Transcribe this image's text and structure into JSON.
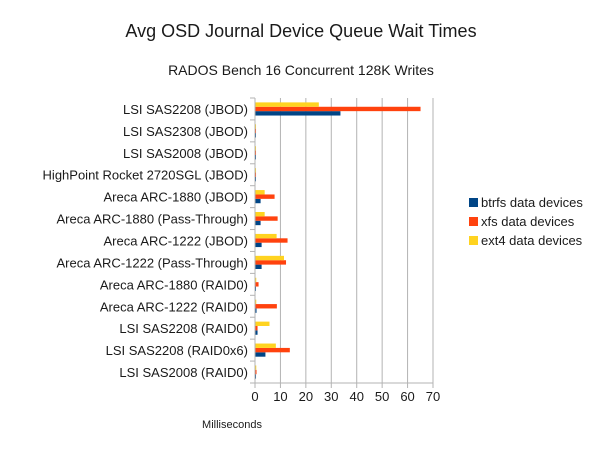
{
  "chart_data": {
    "type": "bar",
    "orientation": "horizontal",
    "title": "Avg OSD Journal Device Queue Wait Times",
    "subtitle": "RADOS Bench 16 Concurrent 128K Writes",
    "xlabel": "Milliseconds",
    "ylabel": "",
    "xlim": [
      0,
      70
    ],
    "xticks": [
      0,
      10,
      20,
      30,
      40,
      50,
      60,
      70
    ],
    "grid": true,
    "legend_position": "right",
    "categories": [
      "LSI SAS2208 (JBOD)",
      "LSI SAS2308 (JBOD)",
      "LSI SAS2008 (JBOD)",
      "HighPoint Rocket 2720SGL (JBOD)",
      "Areca ARC-1880 (JBOD)",
      "Areca ARC-1880 (Pass-Through)",
      "Areca ARC-1222 (JBOD)",
      "Areca ARC-1222 (Pass-Through)",
      "Areca ARC-1880 (RAID0)",
      "Areca ARC-1222 (RAID0)",
      "LSI SAS2208 (RAID0)",
      "LSI SAS2208 (RAID0x6)",
      "LSI SAS2008 (RAID0)"
    ],
    "series": [
      {
        "name": "btrfs data devices",
        "color": "#004586",
        "values": [
          33.6,
          0.3,
          0.3,
          0.3,
          2.2,
          2.2,
          2.6,
          2.6,
          0.3,
          0.6,
          1.0,
          4.1,
          0.4
        ]
      },
      {
        "name": "xfs data devices",
        "color": "#ff420e",
        "values": [
          65.1,
          0.4,
          0.4,
          0.4,
          7.7,
          8.9,
          12.8,
          12.2,
          1.4,
          8.6,
          1.0,
          13.7,
          0.6
        ]
      },
      {
        "name": "ext4 data devices",
        "color": "#ffd320",
        "values": [
          25.1,
          0.4,
          0.4,
          0.4,
          3.8,
          3.8,
          8.5,
          11.4,
          0.5,
          0.5,
          5.7,
          8.2,
          0.5
        ]
      }
    ]
  }
}
